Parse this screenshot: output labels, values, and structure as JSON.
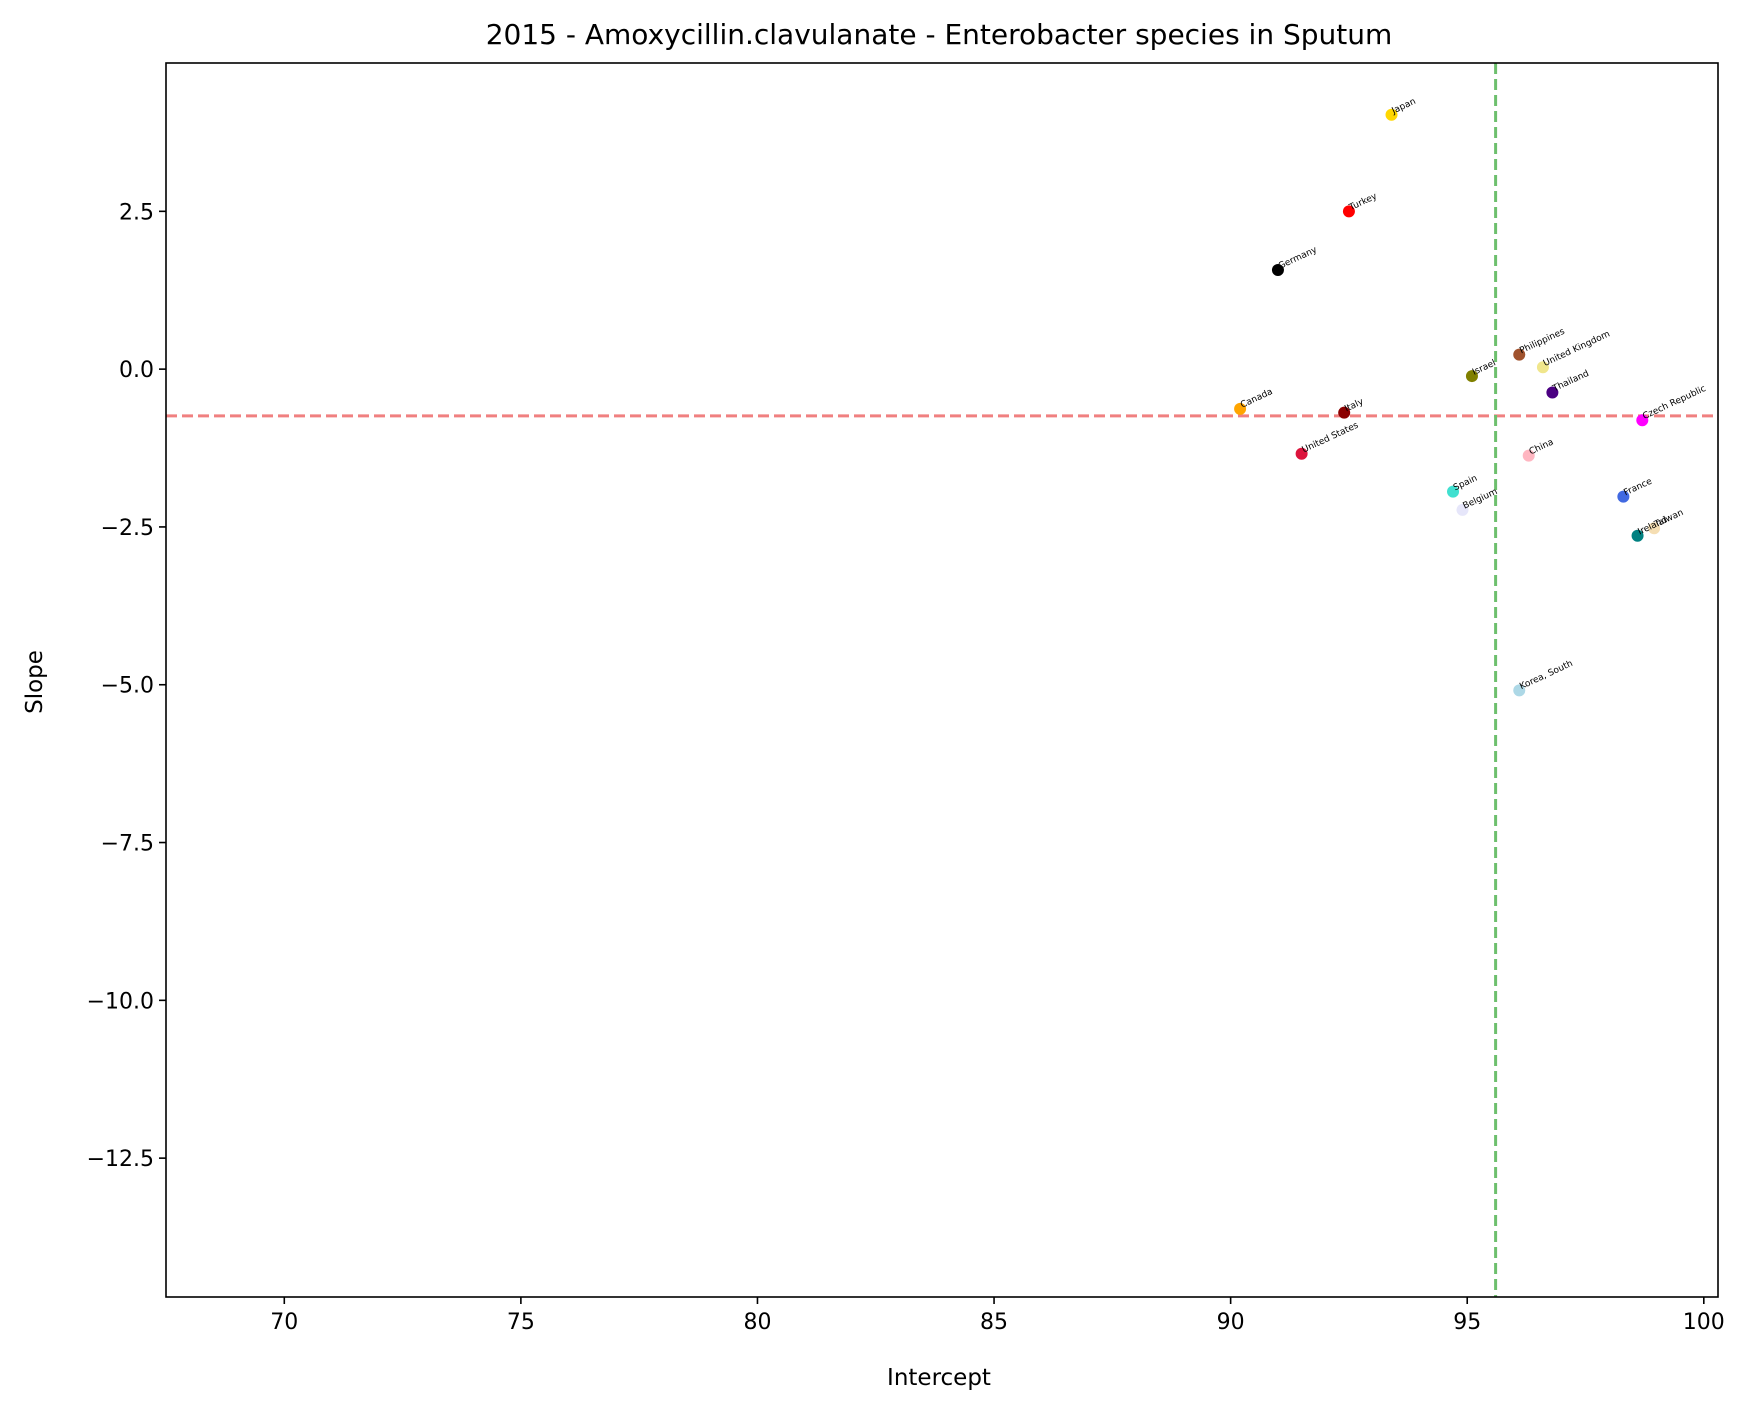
{
  "chart_data": {
    "type": "scatter",
    "title": "2015 - Amoxycillin.clavulanate - Enterobacter species in Sputum",
    "xlabel": "Intercept",
    "ylabel": "Slope",
    "xlim": [
      67.5,
      100.3
    ],
    "ylim": [
      -14.7,
      4.85
    ],
    "xticks": [
      70,
      75,
      80,
      85,
      90,
      95,
      100
    ],
    "xtick_labels": [
      "70",
      "75",
      "80",
      "85",
      "90",
      "95",
      "100"
    ],
    "yticks": [
      2.5,
      0.0,
      -2.5,
      -5.0,
      -7.5,
      -10.0,
      -12.5
    ],
    "ytick_labels": [
      "2.5",
      "0.0",
      "−2.5",
      "−5.0",
      "−7.5",
      "−10.0",
      "−12.5"
    ],
    "grid": false,
    "reference_lines": {
      "horizontal": {
        "y": -0.74,
        "color": "#f08080",
        "style": "dashed"
      },
      "vertical": {
        "x": 95.6,
        "color": "#6dbf6d",
        "style": "dashed"
      }
    },
    "points": [
      {
        "label": "Japan",
        "x": 93.4,
        "y": 4.03,
        "color": "#ffd700"
      },
      {
        "label": "Turkey",
        "x": 92.5,
        "y": 2.5,
        "color": "#ff0000"
      },
      {
        "label": "Germany",
        "x": 91.0,
        "y": 1.57,
        "color": "#000000"
      },
      {
        "label": "Philippines",
        "x": 96.1,
        "y": 0.23,
        "color": "#a0522d"
      },
      {
        "label": "United Kingdom",
        "x": 96.6,
        "y": 0.03,
        "color": "#f0e68c"
      },
      {
        "label": "Israel",
        "x": 95.1,
        "y": -0.11,
        "color": "#808000"
      },
      {
        "label": "Thailand",
        "x": 96.8,
        "y": -0.37,
        "color": "#4b0082"
      },
      {
        "label": "Canada",
        "x": 90.2,
        "y": -0.63,
        "color": "#ffa500"
      },
      {
        "label": "Italy",
        "x": 92.4,
        "y": -0.69,
        "color": "#8b0000"
      },
      {
        "label": "Czech Republic",
        "x": 98.7,
        "y": -0.81,
        "color": "#ff00ff"
      },
      {
        "label": "United States",
        "x": 91.5,
        "y": -1.34,
        "color": "#dc143c"
      },
      {
        "label": "China",
        "x": 96.3,
        "y": -1.37,
        "color": "#ffb6c1"
      },
      {
        "label": "Spain",
        "x": 94.7,
        "y": -1.94,
        "color": "#40e0d0"
      },
      {
        "label": "France",
        "x": 98.3,
        "y": -2.02,
        "color": "#4169e1"
      },
      {
        "label": "Belgium",
        "x": 94.9,
        "y": -2.23,
        "color": "#e6e6fa"
      },
      {
        "label": "Ireland",
        "x": 98.6,
        "y": -2.64,
        "color": "#008080"
      },
      {
        "label": "Taiwan",
        "x": 98.95,
        "y": -2.52,
        "color": "#f5deb3"
      },
      {
        "label": "Korea, South",
        "x": 96.1,
        "y": -5.09,
        "color": "#add8e6"
      }
    ]
  }
}
